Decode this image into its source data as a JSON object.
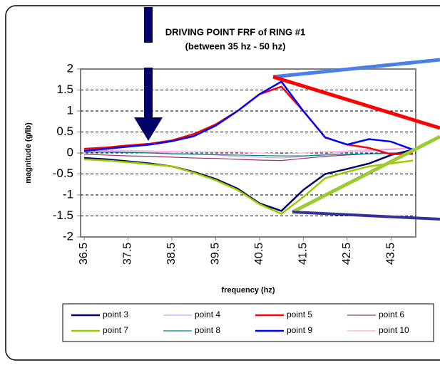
{
  "chart_data": {
    "type": "line",
    "title": "DRIVING POINT FRF of RING #1",
    "subtitle": "(between 35 hz - 50 hz)",
    "x_label": "frequency (hz)",
    "y_label": "magnitude (g/lb)",
    "x": [
      36.5,
      37,
      37.5,
      38,
      38.5,
      39,
      39.5,
      40,
      40.5,
      41,
      41.5,
      42,
      42.5,
      43,
      43.5,
      44
    ],
    "xlim": [
      36.5,
      44
    ],
    "xticks": [
      36.5,
      37.5,
      38.5,
      39.5,
      40.5,
      41.5,
      42.5,
      43.5
    ],
    "ylim": [
      -2,
      2
    ],
    "yticks": [
      -2,
      -1.5,
      -1,
      -0.5,
      0,
      0.5,
      1,
      1.5,
      2
    ],
    "grid": true,
    "legend": "bottom",
    "series": [
      {
        "name": "point 3",
        "color": "#000066",
        "values": [
          -0.12,
          -0.15,
          -0.2,
          -0.25,
          -0.32,
          -0.45,
          -0.62,
          -0.85,
          -1.2,
          -1.38,
          -0.88,
          -0.5,
          -0.38,
          -0.25,
          -0.05,
          0.08
        ]
      },
      {
        "name": "point 4",
        "color": "#cc99ff",
        "values": [
          0.05,
          0.05,
          0.03,
          0.02,
          0,
          -0.02,
          -0.05,
          -0.08,
          -0.1,
          -0.12,
          -0.08,
          -0.02,
          0.02,
          0.05,
          0.08,
          0.12
        ]
      },
      {
        "name": "point 5",
        "color": "#ff0000",
        "values": [
          0.1,
          0.13,
          0.18,
          0.22,
          0.3,
          0.45,
          0.68,
          1.0,
          1.4,
          1.58,
          1.0,
          0.37,
          0.2,
          0.12,
          -0.03,
          -0.02
        ]
      },
      {
        "name": "point 6",
        "color": "#993366",
        "values": [
          -0.03,
          -0.05,
          -0.07,
          -0.08,
          -0.1,
          -0.12,
          -0.13,
          -0.15,
          -0.17,
          -0.18,
          -0.13,
          -0.08,
          -0.05,
          -0.02,
          0,
          0
        ]
      },
      {
        "name": "point 7",
        "color": "#99cc00",
        "values": [
          -0.15,
          -0.18,
          -0.22,
          -0.27,
          -0.32,
          -0.47,
          -0.65,
          -0.88,
          -1.22,
          -1.45,
          -1.05,
          -0.6,
          -0.45,
          -0.32,
          -0.25,
          -0.18
        ]
      },
      {
        "name": "point 8",
        "color": "#008080",
        "values": [
          0.02,
          0.02,
          0.01,
          0,
          -0.02,
          -0.03,
          -0.04,
          -0.05,
          -0.06,
          -0.07,
          -0.07,
          -0.05,
          -0.03,
          -0.02,
          -0.01,
          0
        ]
      },
      {
        "name": "point 9",
        "color": "#0000ff",
        "values": [
          0.05,
          0.1,
          0.15,
          0.2,
          0.28,
          0.4,
          0.65,
          1.0,
          1.4,
          1.7,
          1.0,
          0.37,
          0.2,
          0.33,
          0.27,
          0.08
        ]
      },
      {
        "name": "point 10",
        "color": "#ffaacc",
        "values": [
          0.08,
          0.07,
          0.06,
          0.05,
          0.04,
          0.03,
          0.02,
          0.02,
          0,
          -0.02,
          0,
          0.03,
          0.05,
          0.08,
          0.1,
          0.12
        ]
      }
    ]
  }
}
